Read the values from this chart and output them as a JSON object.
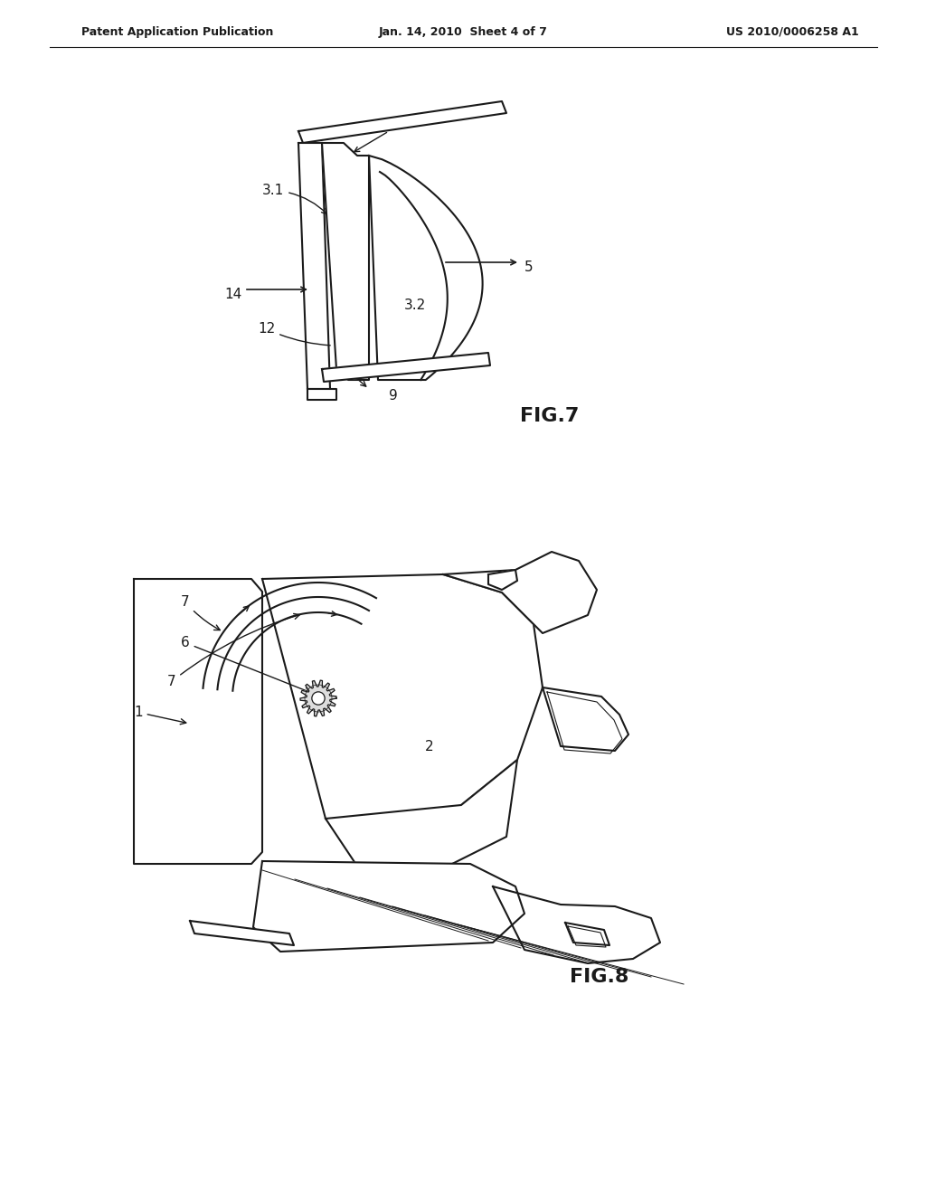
{
  "bg_color": "#ffffff",
  "line_color": "#1a1a1a",
  "header_left": "Patent Application Publication",
  "header_center": "Jan. 14, 2010  Sheet 4 of 7",
  "header_right": "US 2010/0006258 A1",
  "fig7_label": "FIG.7",
  "fig8_label": "FIG.8"
}
